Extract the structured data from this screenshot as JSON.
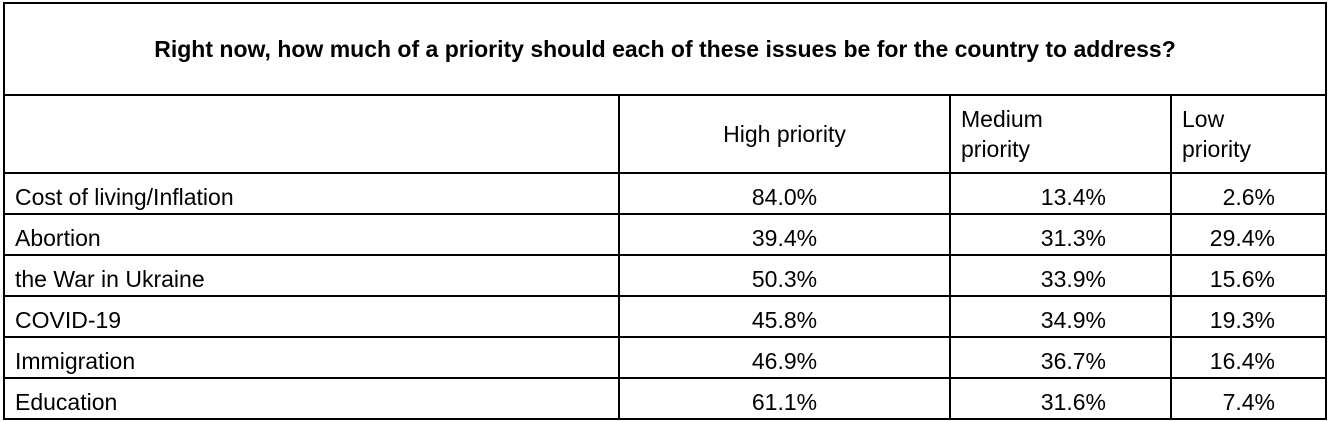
{
  "title": "Right now, how much of a priority should each of these issues be for the country to address?",
  "columns": {
    "high": "High priority",
    "medium_line1": "Medium",
    "medium_line2": "priority",
    "low_line1": "Low",
    "low_line2": "priority"
  },
  "rows": [
    {
      "issue": "Cost of living/Inflation",
      "high": "84.0%",
      "medium": "13.4%",
      "low": "2.6%"
    },
    {
      "issue": "Abortion",
      "high": "39.4%",
      "medium": "31.3%",
      "low": "29.4%"
    },
    {
      "issue": "the War in Ukraine",
      "high": "50.3%",
      "medium": "33.9%",
      "low": "15.6%"
    },
    {
      "issue": "COVID-19",
      "high": "45.8%",
      "medium": "34.9%",
      "low": "19.3%"
    },
    {
      "issue": "Immigration",
      "high": "46.9%",
      "medium": "36.7%",
      "low": "16.4%"
    },
    {
      "issue": "Education",
      "high": "61.1%",
      "medium": "31.6%",
      "low": "7.4%"
    }
  ]
}
